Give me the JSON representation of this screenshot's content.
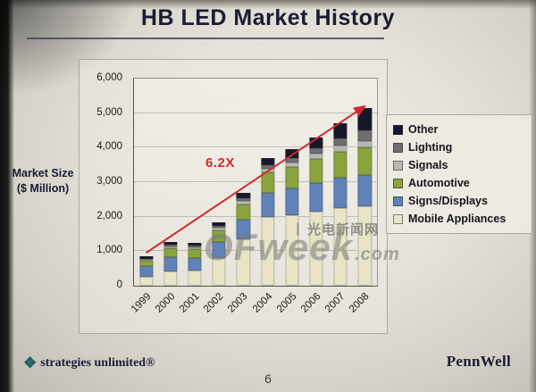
{
  "slide": {
    "title": "HB LED Market History",
    "y_axis_title_line1": "Market Size",
    "y_axis_title_line2": "($ Million)",
    "growth_annotation": "6.2X",
    "page_number": "6",
    "logo_left": "strategies unlimited®",
    "logo_right": "PennWell",
    "watermark_divider": "丨",
    "watermark_cn": "光电新闻网",
    "watermark_main": "OFweek",
    "watermark_suffix": ".com"
  },
  "chart_data": {
    "type": "bar",
    "stacked": true,
    "title": "HB LED Market History",
    "ylabel": "Market Size ($ Million)",
    "ylim": [
      0,
      6000
    ],
    "ytick_interval": 1000,
    "yticks": [
      "0",
      "1,000",
      "2,000",
      "3,000",
      "4,000",
      "5,000",
      "6,000"
    ],
    "categories": [
      "1999",
      "2000",
      "2001",
      "2002",
      "2003",
      "2004",
      "2005",
      "2006",
      "2007",
      "2008"
    ],
    "series": [
      {
        "name": "Mobile Appliances",
        "color": "#e9e4c6",
        "values": [
          260,
          420,
          450,
          800,
          1350,
          2000,
          2050,
          2150,
          2250,
          2300
        ]
      },
      {
        "name": "Signs/Displays",
        "color": "#5f83b9",
        "values": [
          300,
          400,
          360,
          460,
          560,
          700,
          760,
          820,
          870,
          900
        ]
      },
      {
        "name": "Automotive",
        "color": "#8aa33c",
        "values": [
          160,
          260,
          250,
          340,
          450,
          580,
          640,
          700,
          750,
          800
        ]
      },
      {
        "name": "Signals",
        "color": "#b9b9b4",
        "values": [
          40,
          60,
          60,
          80,
          100,
          120,
          130,
          150,
          180,
          200
        ]
      },
      {
        "name": "Lighting",
        "color": "#6e6e6e",
        "values": [
          30,
          50,
          40,
          60,
          80,
          100,
          130,
          160,
          220,
          300
        ]
      },
      {
        "name": "Other",
        "color": "#17172c",
        "values": [
          60,
          90,
          80,
          110,
          160,
          200,
          240,
          320,
          430,
          650
        ]
      }
    ],
    "legend_order_top_to_bottom": [
      "Other",
      "Lighting",
      "Signals",
      "Automotive",
      "Signs/Displays",
      "Mobile Appliances"
    ],
    "legend_position": "right",
    "grid": true,
    "annotation": {
      "text": "6.2X",
      "color": "#cf2b2b"
    },
    "arrow": {
      "from_category": "1999",
      "to_category": "2008",
      "color": "#cf2b2b"
    }
  }
}
